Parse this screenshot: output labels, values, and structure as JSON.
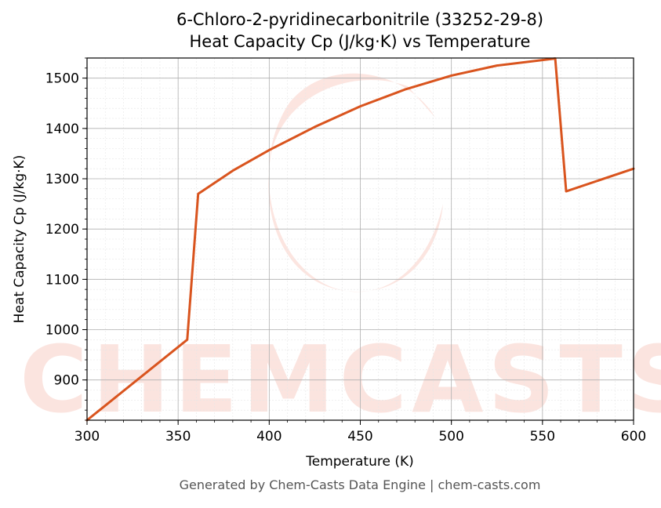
{
  "chart_data": {
    "type": "line",
    "title": "6-Chloro-2-pyridinecarbonitrile (33252-29-8)",
    "subtitle": "Heat Capacity Cp (J/kg·K) vs Temperature",
    "xlabel": "Temperature (K)",
    "ylabel": "Heat Capacity Cp (J/kg·K)",
    "xlim": [
      300,
      600
    ],
    "ylim": [
      820,
      1540
    ],
    "xticks": [
      300,
      350,
      400,
      450,
      500,
      550,
      600
    ],
    "yticks": [
      900,
      1000,
      1100,
      1200,
      1300,
      1400,
      1500
    ],
    "grid": true,
    "line_color": "#d9541e",
    "series": [
      {
        "values": [
          {
            "x": 300,
            "y": 820
          },
          {
            "x": 355,
            "y": 980
          },
          {
            "x": 361,
            "y": 1270
          },
          {
            "x": 380,
            "y": 1316
          },
          {
            "x": 400,
            "y": 1357
          },
          {
            "x": 425,
            "y": 1403
          },
          {
            "x": 450,
            "y": 1444
          },
          {
            "x": 475,
            "y": 1478
          },
          {
            "x": 500,
            "y": 1505
          },
          {
            "x": 525,
            "y": 1525
          },
          {
            "x": 557,
            "y": 1539
          },
          {
            "x": 563,
            "y": 1275
          },
          {
            "x": 600,
            "y": 1320
          }
        ]
      }
    ]
  },
  "watermark": {
    "text": "CHEMCASTS",
    "color": "#fbe0da"
  },
  "footer": "Generated by Chem-Casts Data Engine | chem-casts.com"
}
